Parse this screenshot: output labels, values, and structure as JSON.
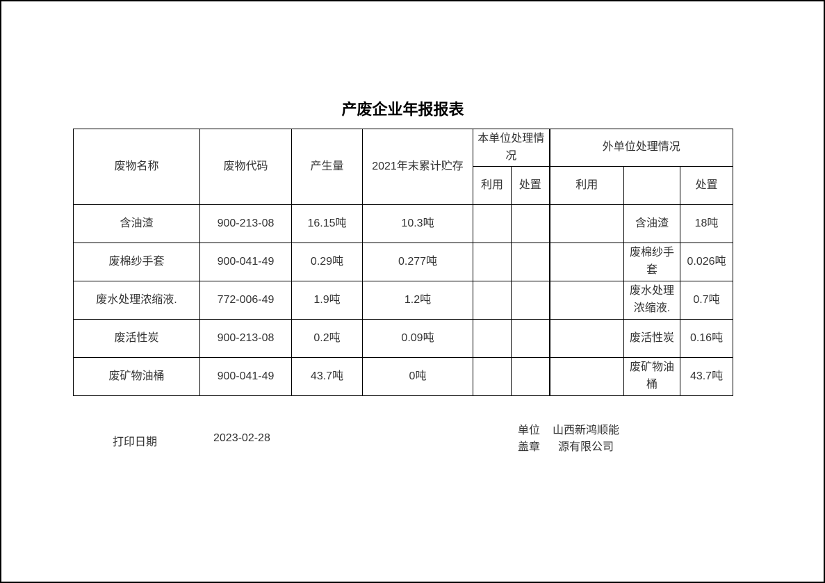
{
  "page": {
    "title": "产废企业年报报表"
  },
  "table": {
    "headers": {
      "waste_name": "废物名称",
      "waste_code": "废物代码",
      "generated_amount": "产生量",
      "storage_2021": "2021年末累计贮存",
      "own_unit_group": "本单位处理情况",
      "external_unit_group": "外单位处理情况",
      "own_use": "利用",
      "own_dispose": "处置",
      "ext_use": "利用",
      "ext_middle": "",
      "ext_dispose": "处置"
    },
    "rows": [
      [
        "含油渣",
        "900-213-08",
        "16.15吨",
        "10.3吨",
        "",
        "",
        "",
        "含油渣",
        "18吨"
      ],
      [
        "废棉纱手套",
        "900-041-49",
        "0.29吨",
        "0.277吨",
        "",
        "",
        "",
        "废棉纱手套",
        "0.026吨"
      ],
      [
        "废水处理浓缩液.",
        "772-006-49",
        "1.9吨",
        "1.2吨",
        "",
        "",
        "",
        "废水处理浓缩液.",
        "0.7吨"
      ],
      [
        "废活性炭",
        "900-213-08",
        "0.2吨",
        "0.09吨",
        "",
        "",
        "",
        "废活性炭",
        "0.16吨"
      ],
      [
        "废矿物油桶",
        "900-041-49",
        "43.7吨",
        "0吨",
        "",
        "",
        "",
        "废矿物油桶",
        "43.7吨"
      ]
    ]
  },
  "footer": {
    "print_date_label": "打印日期",
    "print_date_value": "2023-02-28",
    "unit_seal_label": "单位\n盖章",
    "company_name": "山西新鸿顺能源有限公司"
  }
}
